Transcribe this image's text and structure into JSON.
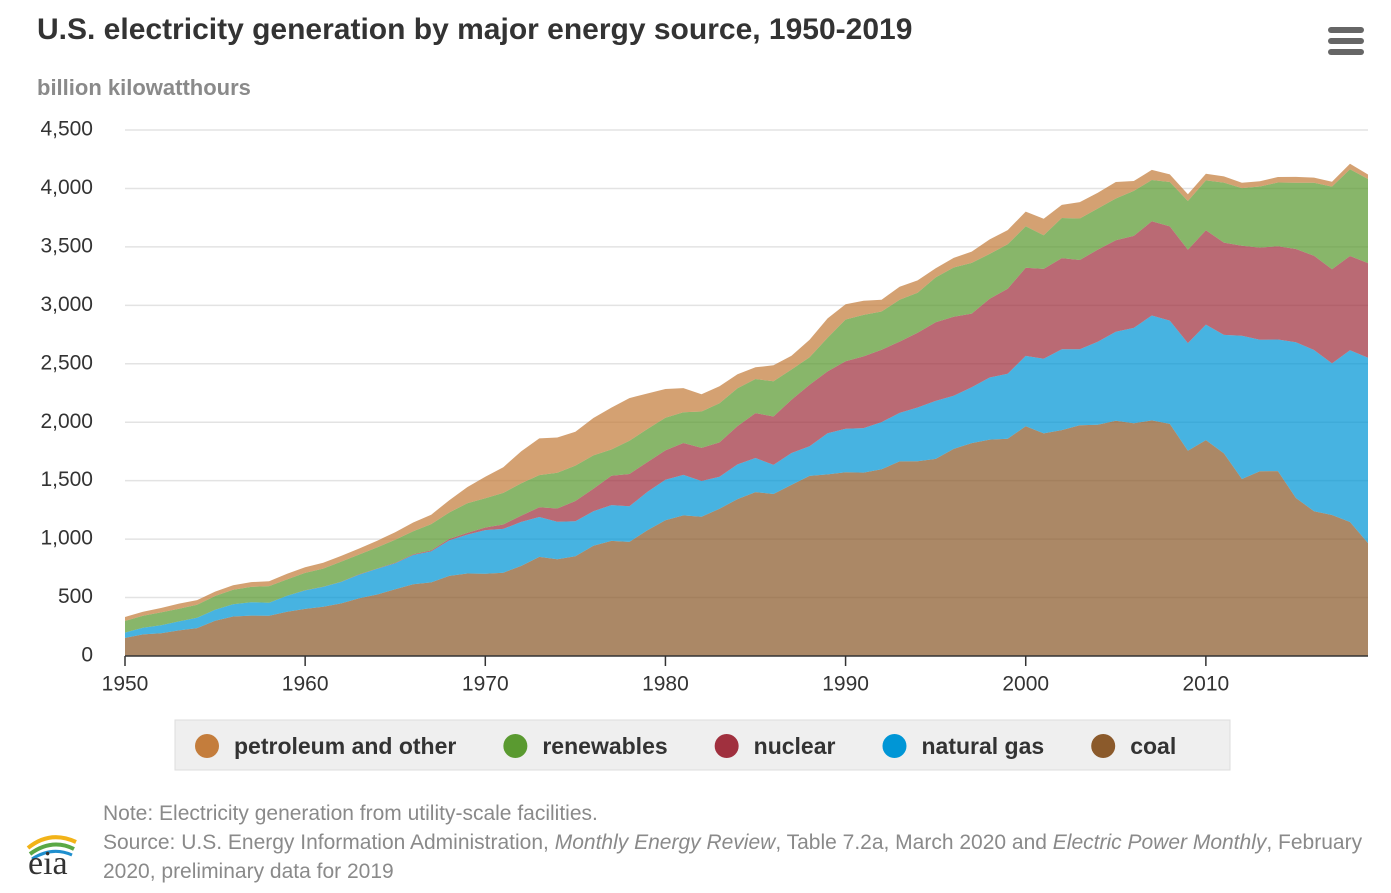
{
  "chart_data": {
    "type": "stacked_area",
    "title": "U.S. electricity generation by major energy source, 1950-2019",
    "subtitle": "billion kilowatthours",
    "x": [
      1950,
      1951,
      1952,
      1953,
      1954,
      1955,
      1956,
      1957,
      1958,
      1959,
      1960,
      1961,
      1962,
      1963,
      1964,
      1965,
      1966,
      1967,
      1968,
      1969,
      1970,
      1971,
      1972,
      1973,
      1974,
      1975,
      1976,
      1977,
      1978,
      1979,
      1980,
      1981,
      1982,
      1983,
      1984,
      1985,
      1986,
      1987,
      1988,
      1989,
      1990,
      1991,
      1992,
      1993,
      1994,
      1995,
      1996,
      1997,
      1998,
      1999,
      2000,
      2001,
      2002,
      2003,
      2004,
      2005,
      2006,
      2007,
      2008,
      2009,
      2010,
      2011,
      2012,
      2013,
      2014,
      2015,
      2016,
      2017,
      2018,
      2019
    ],
    "xlim": [
      1950,
      2019
    ],
    "xticks": [
      1950,
      1960,
      1970,
      1980,
      1990,
      2000,
      2010
    ],
    "ylim": [
      0,
      4500
    ],
    "yticks": [
      0,
      {
        "value": 500,
        "label": "500"
      },
      {
        "value": 1000,
        "label": "1,000"
      },
      {
        "value": 1500,
        "label": "1,500"
      },
      {
        "value": 2000,
        "label": "2,000"
      },
      {
        "value": 2500,
        "label": "2,500"
      },
      {
        "value": 3000,
        "label": "3,000"
      },
      {
        "value": 3500,
        "label": "3,500"
      },
      {
        "value": 4000,
        "label": "4,000"
      },
      {
        "value": 4500,
        "label": "4,500"
      }
    ],
    "grid": true,
    "series": [
      {
        "name": "coal",
        "color": "#8b5a2b",
        "values": [
          155,
          185,
          195,
          219,
          239,
          301,
          338,
          346,
          344,
          378,
          403,
          422,
          450,
          494,
          526,
          571,
          613,
          630,
          685,
          706,
          704,
          713,
          771,
          848,
          828,
          853,
          944,
          985,
          976,
          1075,
          1162,
          1203,
          1192,
          1259,
          1342,
          1402,
          1386,
          1464,
          1541,
          1554,
          1572,
          1569,
          1597,
          1665,
          1666,
          1686,
          1772,
          1821,
          1851,
          1858,
          1966,
          1904,
          1933,
          1974,
          1978,
          2013,
          1991,
          2016,
          1986,
          1756,
          1847,
          1733,
          1514,
          1581,
          1582,
          1352,
          1239,
          1206,
          1146,
          966
        ]
      },
      {
        "name": "natural gas",
        "color": "#0096d6",
        "values": [
          45,
          57,
          68,
          77,
          88,
          95,
          104,
          114,
          111,
          137,
          158,
          169,
          184,
          202,
          220,
          222,
          251,
          265,
          304,
          333,
          373,
          374,
          376,
          341,
          320,
          300,
          295,
          306,
          305,
          329,
          346,
          346,
          305,
          274,
          297,
          292,
          249,
          273,
          253,
          352,
          373,
          381,
          404,
          415,
          460,
          496,
          455,
          479,
          532,
          556,
          601,
          639,
          691,
          650,
          710,
          761,
          816,
          897,
          883,
          921,
          988,
          1014,
          1226,
          1124,
          1126,
          1333,
          1379,
          1297,
          1469,
          1586
        ]
      },
      {
        "name": "nuclear",
        "color": "#a0303e",
        "values": [
          0,
          0,
          0,
          0,
          0,
          0,
          0,
          0,
          0,
          0,
          1,
          2,
          2,
          3,
          3,
          4,
          6,
          8,
          13,
          14,
          22,
          38,
          54,
          83,
          114,
          173,
          191,
          251,
          276,
          255,
          251,
          273,
          283,
          294,
          328,
          384,
          414,
          455,
          527,
          529,
          577,
          613,
          619,
          610,
          640,
          673,
          675,
          629,
          674,
          728,
          754,
          769,
          780,
          764,
          789,
          782,
          787,
          806,
          806,
          799,
          807,
          790,
          769,
          789,
          797,
          797,
          806,
          805,
          807,
          809
        ]
      },
      {
        "name": "renewables",
        "color": "#5a9a30",
        "values": [
          100,
          103,
          110,
          109,
          112,
          117,
          124,
          131,
          143,
          140,
          149,
          155,
          172,
          169,
          180,
          197,
          198,
          225,
          226,
          254,
          251,
          270,
          277,
          276,
          306,
          303,
          286,
          225,
          284,
          283,
          279,
          264,
          312,
          336,
          324,
          292,
          301,
          259,
          235,
          288,
          357,
          355,
          327,
          357,
          341,
          384,
          422,
          434,
          383,
          380,
          356,
          288,
          343,
          355,
          351,
          358,
          385,
          353,
          380,
          417,
          427,
          513,
          494,
          523,
          546,
          567,
          624,
          708,
          742,
          720
        ]
      },
      {
        "name": "petroleum and other",
        "color": "#c47d3c",
        "values": [
          34,
          33,
          38,
          43,
          39,
          38,
          40,
          41,
          42,
          48,
          48,
          49,
          48,
          52,
          57,
          64,
          74,
          81,
          105,
          138,
          184,
          220,
          274,
          314,
          301,
          289,
          320,
          358,
          365,
          304,
          246,
          206,
          147,
          144,
          120,
          100,
          137,
          118,
          149,
          165,
          130,
          121,
          100,
          112,
          106,
          78,
          82,
          97,
          124,
          122,
          125,
          141,
          112,
          140,
          136,
          141,
          85,
          87,
          65,
          57,
          56,
          53,
          45,
          45,
          47,
          50,
          45,
          42,
          48,
          38
        ]
      }
    ]
  },
  "note": "Note: Electricity generation from utility-scale facilities.",
  "source": [
    "Source: U.S. Energy Information Administration, ",
    "Monthly Energy Review",
    ", Table 7.2a, March 2020 and ",
    "Electric Power Monthly",
    ", February 2020, preliminary data for 2019"
  ],
  "logo": "eia"
}
